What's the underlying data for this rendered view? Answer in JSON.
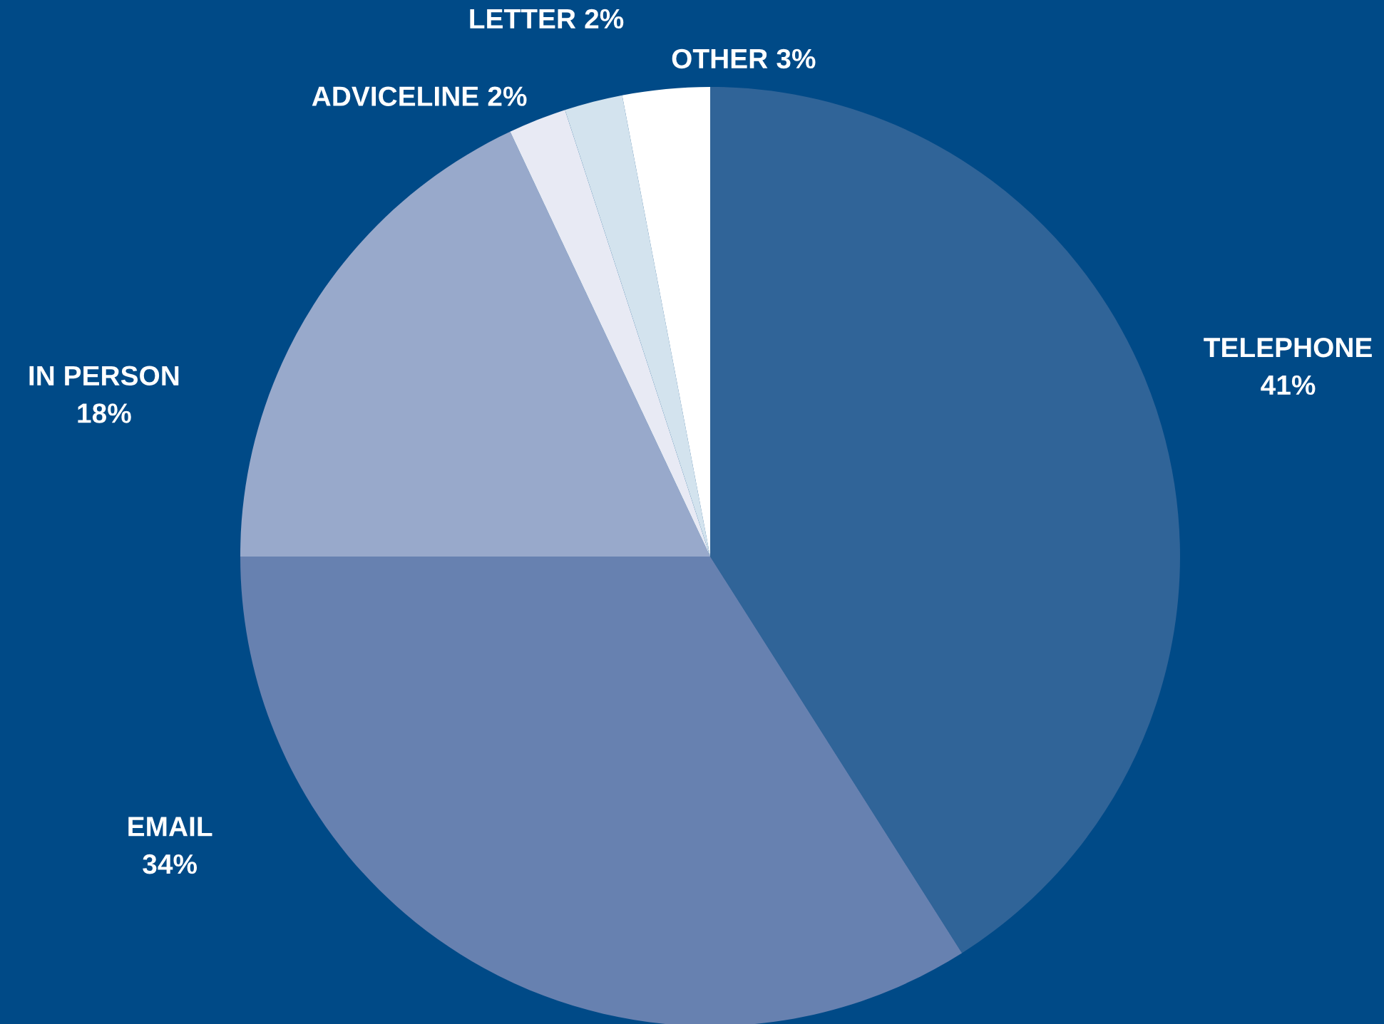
{
  "chart_data": {
    "type": "pie",
    "categories": [
      "TELEPHONE",
      "EMAIL",
      "IN PERSON",
      "ADVICELINE",
      "LETTER",
      "OTHER"
    ],
    "values": [
      41,
      34,
      18,
      2,
      2,
      3
    ],
    "colors": [
      "#306498",
      "#6781b0",
      "#98a9cb",
      "#e8eaf4",
      "#d3e3ee",
      "#ffffff"
    ],
    "value_labels": [
      "41%",
      "34%",
      "18%",
      "2%",
      "2%",
      "3%"
    ]
  }
}
